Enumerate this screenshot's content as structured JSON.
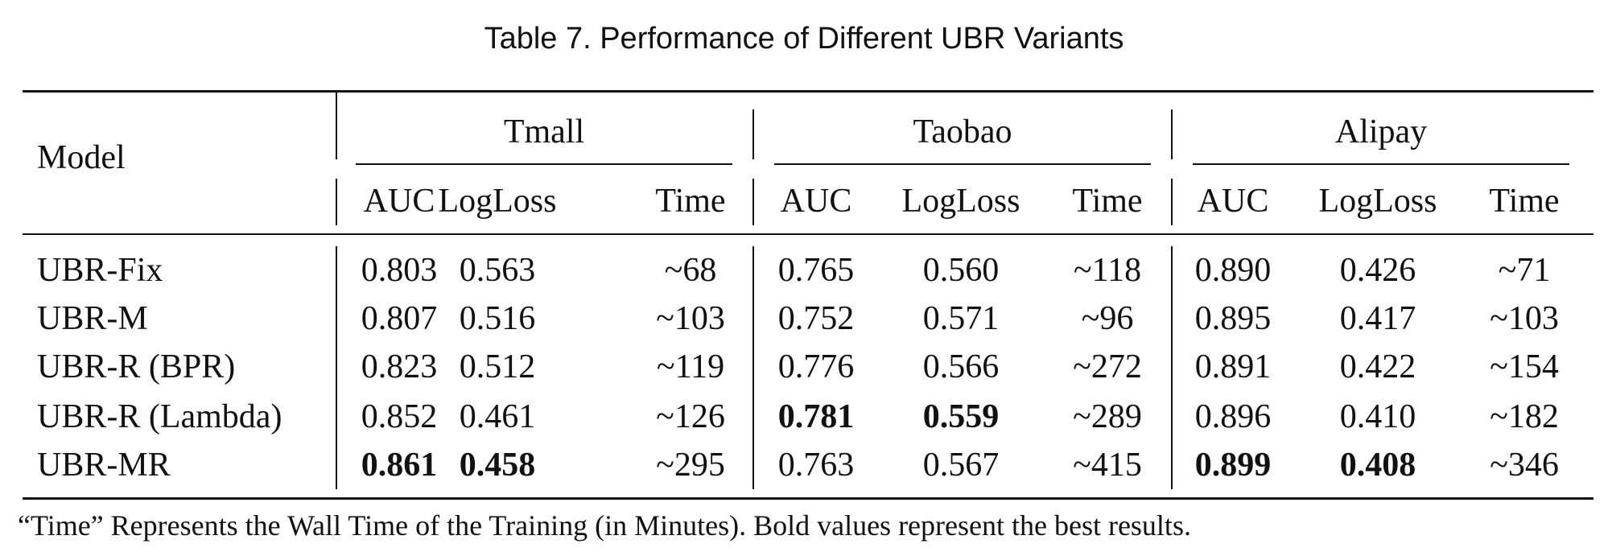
{
  "caption": "Table 7.  Performance of Different UBR Variants",
  "header": {
    "model": "Model",
    "datasets": [
      "Tmall",
      "Taobao",
      "Alipay"
    ],
    "metrics": [
      "AUC",
      "LogLoss",
      "Time"
    ]
  },
  "rows": [
    {
      "model": "UBR-Fix",
      "cells": [
        {
          "v": "0.803",
          "b": false
        },
        {
          "v": "0.563",
          "b": false
        },
        {
          "v": "~68",
          "b": false
        },
        {
          "v": "0.765",
          "b": false
        },
        {
          "v": "0.560",
          "b": false
        },
        {
          "v": "~118",
          "b": false
        },
        {
          "v": "0.890",
          "b": false
        },
        {
          "v": "0.426",
          "b": false
        },
        {
          "v": "~71",
          "b": false
        }
      ]
    },
    {
      "model": "UBR-M",
      "cells": [
        {
          "v": "0.807",
          "b": false
        },
        {
          "v": "0.516",
          "b": false
        },
        {
          "v": "~103",
          "b": false
        },
        {
          "v": "0.752",
          "b": false
        },
        {
          "v": "0.571",
          "b": false
        },
        {
          "v": "~96",
          "b": false
        },
        {
          "v": "0.895",
          "b": false
        },
        {
          "v": "0.417",
          "b": false
        },
        {
          "v": "~103",
          "b": false
        }
      ]
    },
    {
      "model": "UBR-R (BPR)",
      "cells": [
        {
          "v": "0.823",
          "b": false
        },
        {
          "v": "0.512",
          "b": false
        },
        {
          "v": "~119",
          "b": false
        },
        {
          "v": "0.776",
          "b": false
        },
        {
          "v": "0.566",
          "b": false
        },
        {
          "v": "~272",
          "b": false
        },
        {
          "v": "0.891",
          "b": false
        },
        {
          "v": "0.422",
          "b": false
        },
        {
          "v": "~154",
          "b": false
        }
      ]
    },
    {
      "model": "UBR-R (Lambda)",
      "cells": [
        {
          "v": "0.852",
          "b": false
        },
        {
          "v": "0.461",
          "b": false
        },
        {
          "v": "~126",
          "b": false
        },
        {
          "v": "0.781",
          "b": true
        },
        {
          "v": "0.559",
          "b": true
        },
        {
          "v": "~289",
          "b": false
        },
        {
          "v": "0.896",
          "b": false
        },
        {
          "v": "0.410",
          "b": false
        },
        {
          "v": "~182",
          "b": false
        }
      ]
    },
    {
      "model": "UBR-MR",
      "cells": [
        {
          "v": "0.861",
          "b": true
        },
        {
          "v": "0.458",
          "b": true
        },
        {
          "v": "~295",
          "b": false
        },
        {
          "v": "0.763",
          "b": false
        },
        {
          "v": "0.567",
          "b": false
        },
        {
          "v": "~415",
          "b": false
        },
        {
          "v": "0.899",
          "b": true
        },
        {
          "v": "0.408",
          "b": true
        },
        {
          "v": "~346",
          "b": false
        }
      ]
    }
  ],
  "note": "“Time” Represents the Wall Time of the Training (in Minutes). Bold values represent the best results."
}
